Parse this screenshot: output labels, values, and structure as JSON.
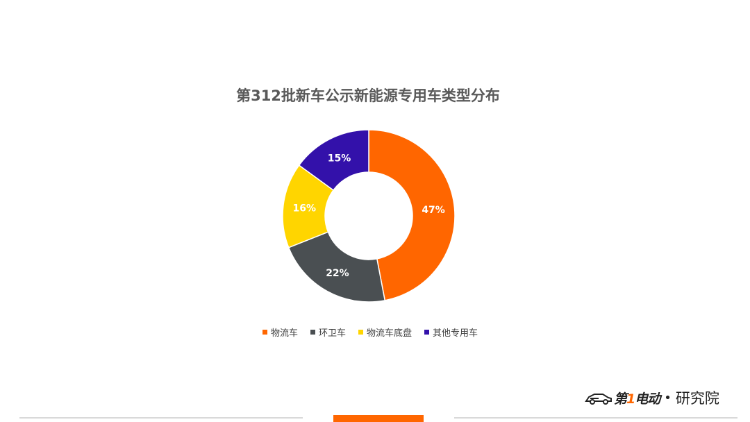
{
  "chart_data": {
    "type": "pie",
    "title": "第312批新车公示新能源专用车类型分布",
    "categories": [
      "物流车",
      "环卫车",
      "物流车底盘",
      "其他专用车"
    ],
    "values": [
      47,
      22,
      16,
      15
    ],
    "labels": [
      "47%",
      "22%",
      "16%",
      "15%"
    ],
    "colors": [
      "#ff6600",
      "#4a4f52",
      "#ffd500",
      "#3311aa"
    ],
    "legend_position": "bottom"
  },
  "logo": {
    "brand_prefix": "第",
    "brand_num": "1",
    "brand_suffix": "电动",
    "separator": "•",
    "institute": "研究院"
  },
  "colors": {
    "accent": "#ff6600",
    "footer_line": "#d9d9d9"
  }
}
